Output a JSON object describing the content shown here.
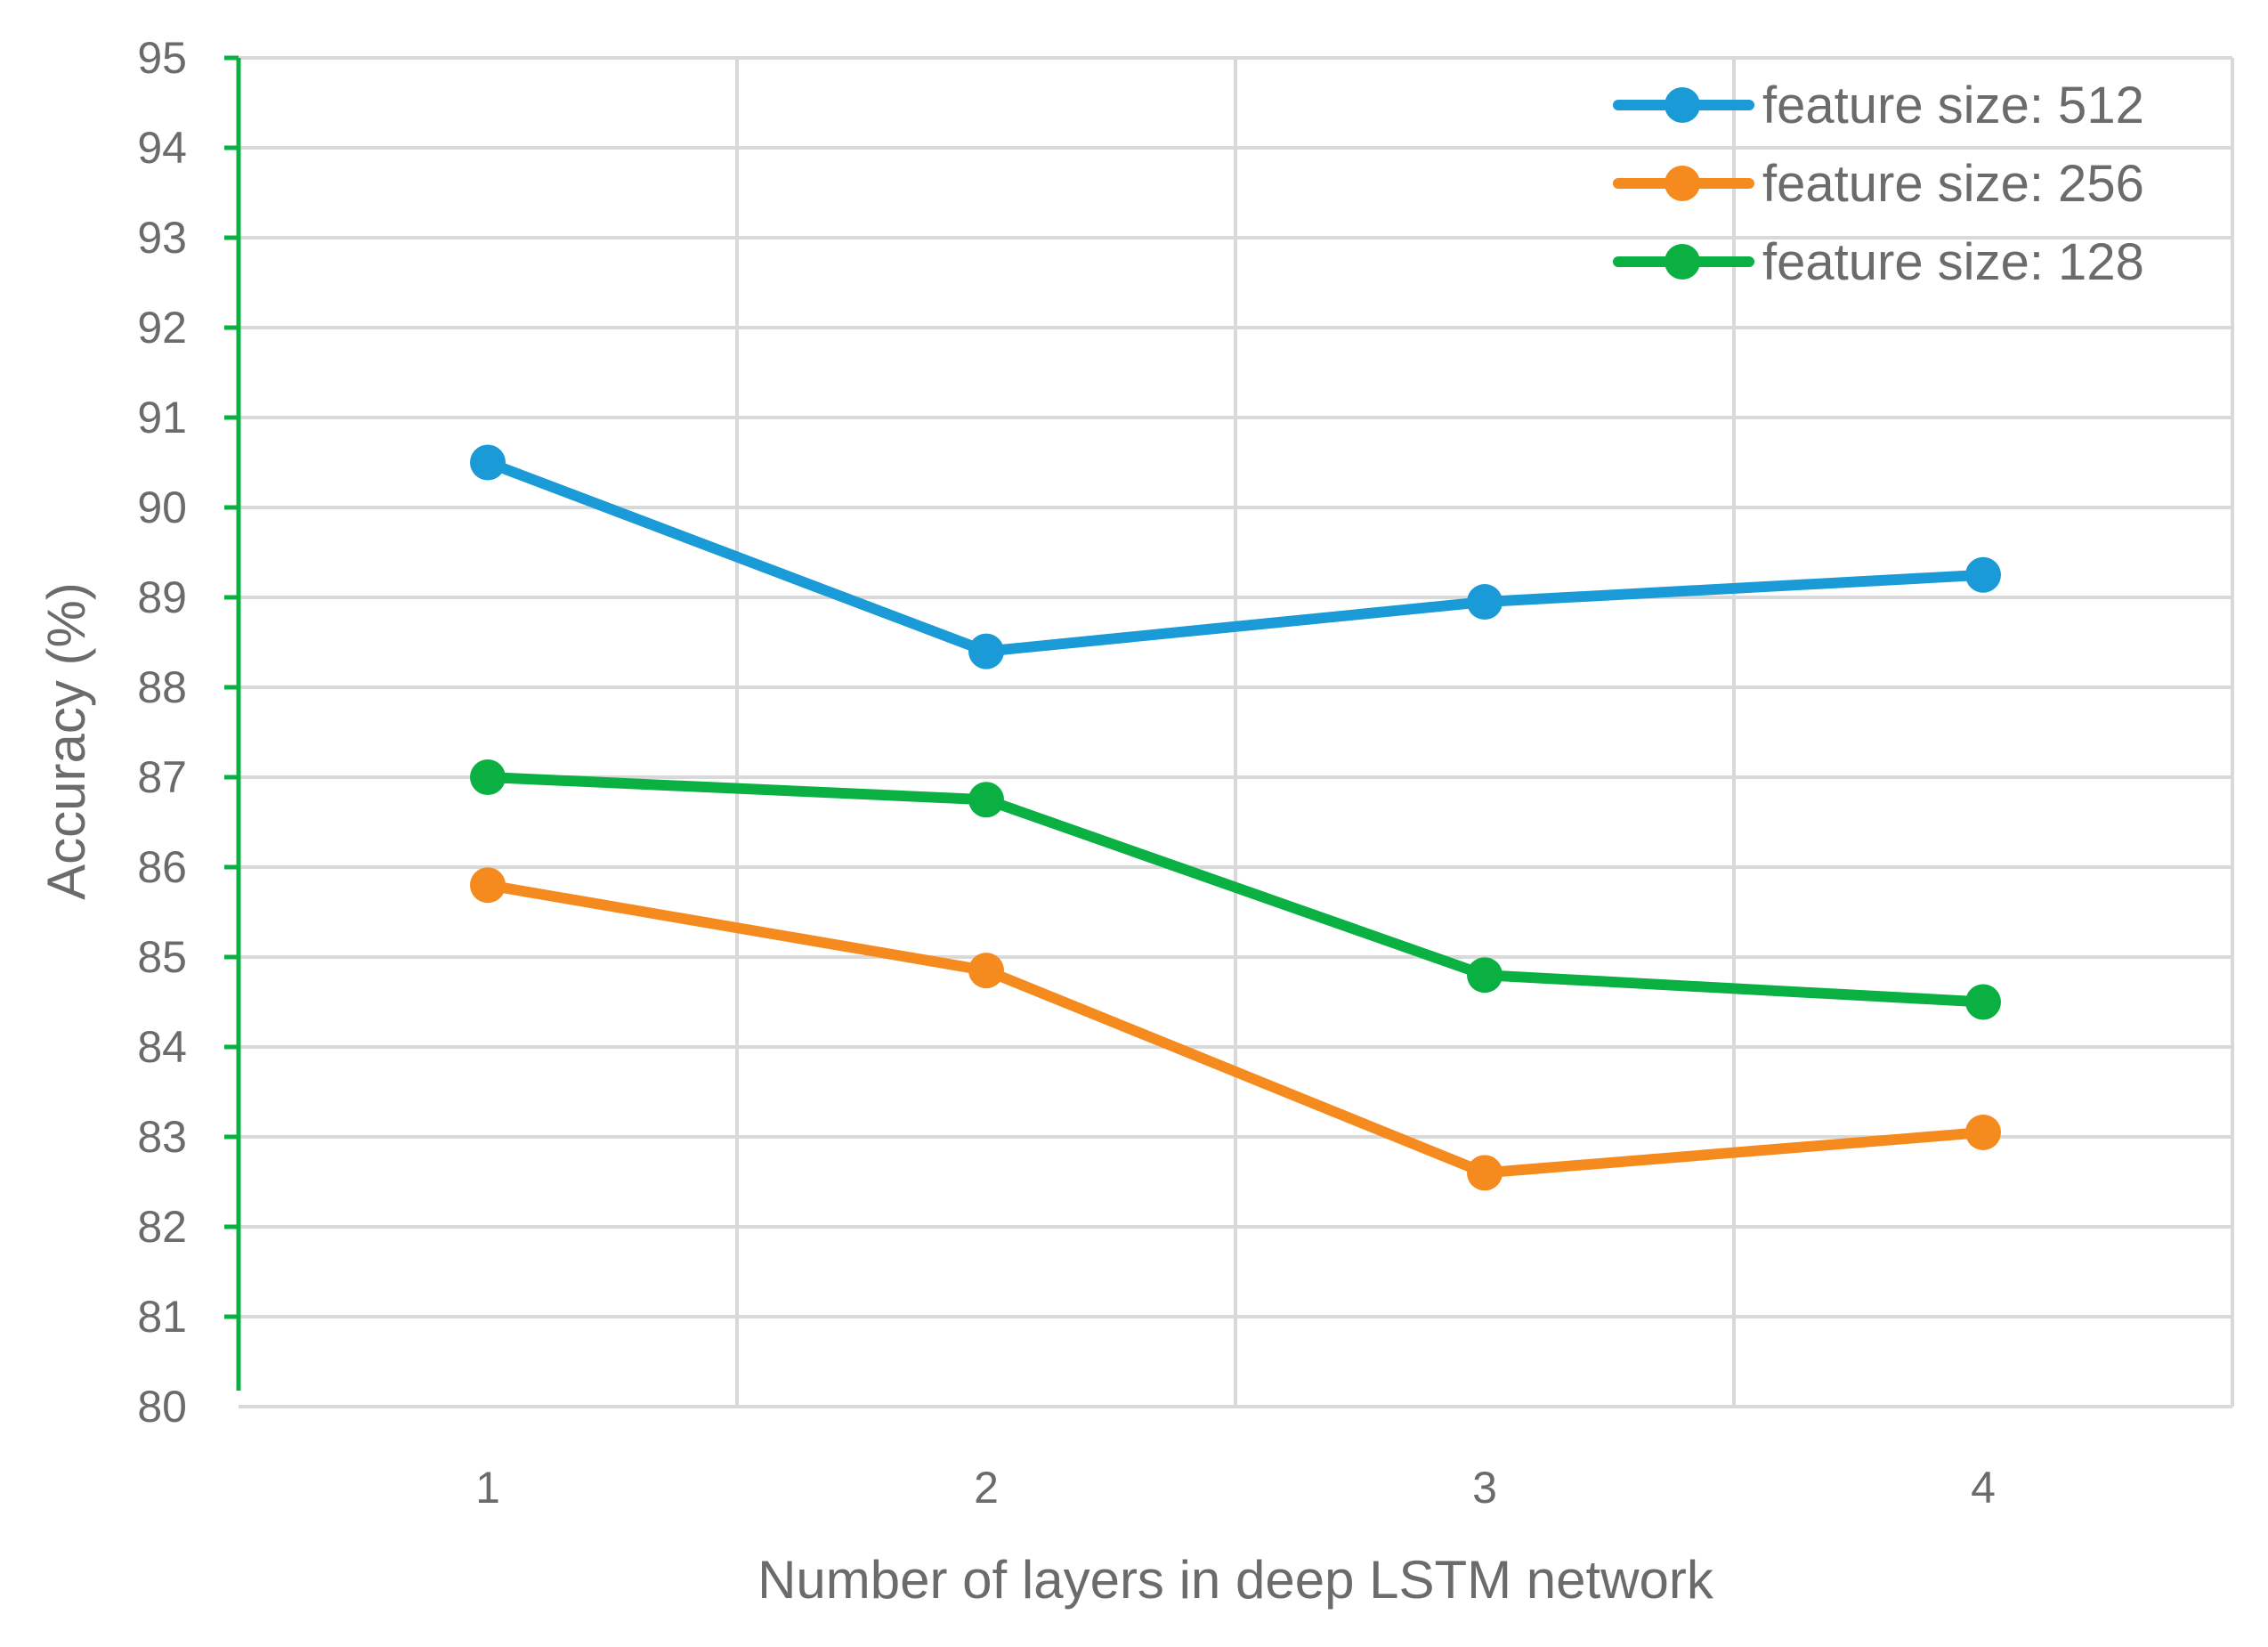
{
  "chart_data": {
    "type": "line",
    "title": "",
    "xlabel": "Number of layers in deep LSTM network",
    "ylabel": "Accuracy (%)",
    "x": [
      1,
      2,
      3,
      4
    ],
    "xticks": [
      "1",
      "2",
      "3",
      "4"
    ],
    "xlim": [
      0.5,
      4.5
    ],
    "ylim": [
      80,
      95
    ],
    "yticks": [
      "80",
      "81",
      "82",
      "83",
      "84",
      "85",
      "86",
      "87",
      "88",
      "89",
      "90",
      "91",
      "92",
      "93",
      "94",
      "95"
    ],
    "grid": true,
    "legend_position": "top-right",
    "series": [
      {
        "name": "feature size: 512",
        "color": "#1a9ad6",
        "values": [
          90.5,
          88.4,
          88.95,
          89.25
        ]
      },
      {
        "name": "feature size: 256",
        "color": "#f58a1f",
        "values": [
          85.8,
          84.85,
          82.6,
          83.05
        ]
      },
      {
        "name": "feature size: 128",
        "color": "#0bb043",
        "values": [
          87.0,
          86.75,
          84.8,
          84.5
        ]
      }
    ],
    "colors": {
      "grid": "#d9d9d9",
      "y_axis": "#0bb043",
      "text": "#6b6b6b"
    }
  }
}
